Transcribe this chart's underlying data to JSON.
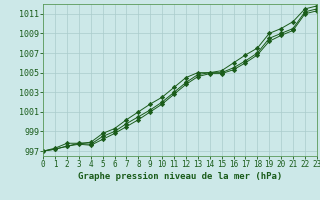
{
  "background_color": "#cce8e8",
  "grid_color": "#aacccc",
  "line_color": "#1a5c1a",
  "marker_color": "#1a5c1a",
  "xlabel": "Graphe pression niveau de la mer (hPa)",
  "xlabel_fontsize": 6.5,
  "xlim": [
    0,
    23
  ],
  "ylim": [
    996.5,
    1012.0
  ],
  "yticks": [
    997,
    999,
    1001,
    1003,
    1005,
    1007,
    1009,
    1011
  ],
  "xticks": [
    0,
    1,
    2,
    3,
    4,
    5,
    6,
    7,
    8,
    9,
    10,
    11,
    12,
    13,
    14,
    15,
    16,
    17,
    18,
    19,
    20,
    21,
    22,
    23
  ],
  "series1": [
    997.0,
    997.2,
    997.5,
    997.8,
    997.7,
    998.5,
    999.0,
    999.8,
    1000.5,
    1001.2,
    1002.0,
    1003.0,
    1004.0,
    1004.8,
    1005.0,
    1005.0,
    1005.5,
    1006.2,
    1007.0,
    1008.5,
    1009.0,
    1009.5,
    1011.2,
    1011.5
  ],
  "series2": [
    997.0,
    997.3,
    997.8,
    997.8,
    997.9,
    998.8,
    999.3,
    1000.2,
    1001.0,
    1001.8,
    1002.5,
    1003.5,
    1004.5,
    1005.0,
    1005.0,
    1005.2,
    1006.0,
    1006.8,
    1007.5,
    1009.0,
    1009.5,
    1010.2,
    1011.5,
    1011.8
  ],
  "series3": [
    997.0,
    997.2,
    997.5,
    997.7,
    997.6,
    998.2,
    998.8,
    999.5,
    1000.2,
    1001.0,
    1001.8,
    1002.8,
    1003.8,
    1004.6,
    1004.9,
    1004.9,
    1005.3,
    1006.0,
    1006.8,
    1008.2,
    1008.8,
    1009.3,
    1011.0,
    1011.3
  ]
}
